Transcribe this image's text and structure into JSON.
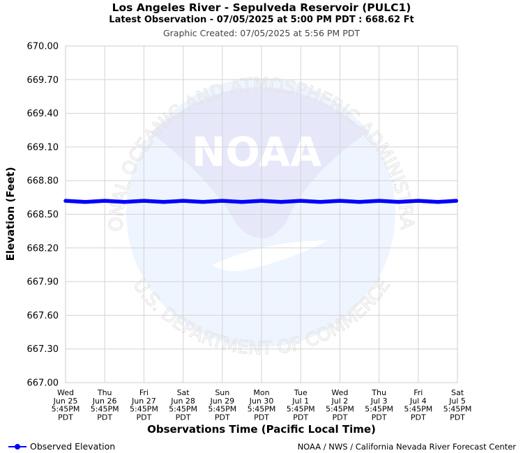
{
  "header": {
    "title": "Los Angeles River - Sepulveda Reservoir (PULC1)",
    "subtitle": "Latest Observation - 07/05/2025 at 5:00 PM PDT : 668.62 Ft",
    "created": "Graphic Created: 07/05/2025 at 5:56 PM PDT"
  },
  "watermark": {
    "logo_text": "NOAA",
    "ring_top": "NATIONAL OCEANIC AND ATMOSPHERIC ADMINISTRATION",
    "ring_bottom": "U.S. DEPARTMENT OF COMMERCE"
  },
  "legend": {
    "label": "Observed Elevation"
  },
  "footer": {
    "credit": "NOAA / NWS / California Nevada River Forecast Center"
  },
  "colors": {
    "series": "#0000ff",
    "grid": "#d3d3d3",
    "watermark_light": "#eef5ff",
    "watermark_dark": "#e6e8fa"
  },
  "chart_data": {
    "type": "line",
    "xlabel": "Observations Time (Pacific Local Time)",
    "ylabel": "Elevation (Feet)",
    "ylim": [
      667.0,
      670.0
    ],
    "yticks": [
      "670.00",
      "669.70",
      "669.40",
      "669.10",
      "668.80",
      "668.50",
      "668.20",
      "667.90",
      "667.60",
      "667.30",
      "667.00"
    ],
    "xlim": [
      "2025-06-25 17:45",
      "2025-07-05 17:45"
    ],
    "xticks": [
      [
        "Wed",
        "Jun 25",
        "5:45PM",
        "PDT"
      ],
      [
        "Thu",
        "Jun 26",
        "5:45PM",
        "PDT"
      ],
      [
        "Fri",
        "Jun 27",
        "5:45PM",
        "PDT"
      ],
      [
        "Sat",
        "Jun 28",
        "5:45PM",
        "PDT"
      ],
      [
        "Sun",
        "Jun 29",
        "5:45PM",
        "PDT"
      ],
      [
        "Mon",
        "Jun 30",
        "5:45PM",
        "PDT"
      ],
      [
        "Tue",
        "Jul 1",
        "5:45PM",
        "PDT"
      ],
      [
        "Wed",
        "Jul 2",
        "5:45PM",
        "PDT"
      ],
      [
        "Thu",
        "Jul 3",
        "5:45PM",
        "PDT"
      ],
      [
        "Fri",
        "Jul 4",
        "5:45PM",
        "PDT"
      ],
      [
        "Sat",
        "Jul 5",
        "5:45PM",
        "PDT"
      ]
    ],
    "grid": true,
    "series": [
      {
        "name": "Observed Elevation",
        "points": [
          [
            "2025-06-25 17:45",
            668.62
          ],
          [
            "2025-06-26 05:45",
            668.61
          ],
          [
            "2025-06-26 17:45",
            668.62
          ],
          [
            "2025-06-27 05:45",
            668.61
          ],
          [
            "2025-06-27 17:45",
            668.62
          ],
          [
            "2025-06-28 05:45",
            668.61
          ],
          [
            "2025-06-28 17:45",
            668.62
          ],
          [
            "2025-06-29 05:45",
            668.61
          ],
          [
            "2025-06-29 17:45",
            668.62
          ],
          [
            "2025-06-30 05:45",
            668.61
          ],
          [
            "2025-06-30 17:45",
            668.62
          ],
          [
            "2025-07-01 05:45",
            668.61
          ],
          [
            "2025-07-01 17:45",
            668.62
          ],
          [
            "2025-07-02 05:45",
            668.61
          ],
          [
            "2025-07-02 17:45",
            668.62
          ],
          [
            "2025-07-03 05:45",
            668.61
          ],
          [
            "2025-07-03 17:45",
            668.62
          ],
          [
            "2025-07-04 05:45",
            668.61
          ],
          [
            "2025-07-04 17:45",
            668.62
          ],
          [
            "2025-07-05 05:45",
            668.61
          ],
          [
            "2025-07-05 17:00",
            668.62
          ]
        ]
      }
    ]
  }
}
